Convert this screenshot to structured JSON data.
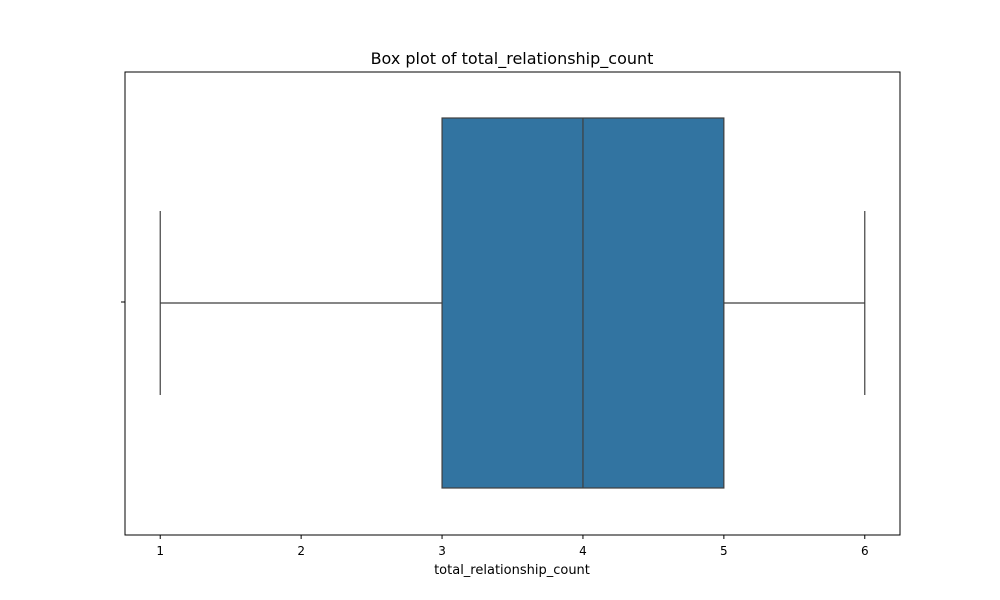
{
  "chart_data": {
    "type": "box",
    "title": "Box plot of total_relationship_count",
    "xlabel": "total_relationship_count",
    "ylabel": "",
    "xlim": [
      0.75,
      6.25
    ],
    "xticks": [
      1,
      2,
      3,
      4,
      5,
      6
    ],
    "grid": false,
    "box": {
      "min": 1,
      "q1": 3,
      "median": 4,
      "q3": 5,
      "max": 6,
      "color": "#3274a1"
    }
  }
}
